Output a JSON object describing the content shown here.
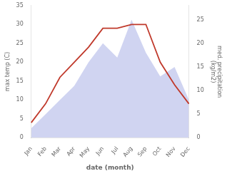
{
  "chart_data": {
    "type": "line",
    "xlabel": "date (month)",
    "ylabel": "max temp (C)",
    "y2label": "med. precipitation\n(kg/m2)",
    "categories": [
      "Jan",
      "Feb",
      "Mar",
      "Apr",
      "May",
      "Jun",
      "Jul",
      "Aug",
      "Sep",
      "Oct",
      "Nov",
      "Dec"
    ],
    "series": [
      {
        "type": "area",
        "axis": "y2",
        "color": "#b0b8e8",
        "values": [
          2,
          5,
          8,
          11,
          16,
          20,
          17,
          25,
          18,
          13,
          15,
          8
        ]
      },
      {
        "type": "line",
        "color": "#c0392b",
        "values": [
          4,
          9,
          16,
          20,
          24,
          29,
          29,
          30,
          30,
          20,
          14,
          9
        ]
      }
    ],
    "ylim": [
      0,
      35
    ],
    "yticks": [
      0,
      5,
      10,
      15,
      20,
      25,
      30,
      35
    ],
    "y2lim": [
      0,
      28
    ],
    "y2ticks": [
      0,
      5,
      10,
      15,
      20,
      25
    ],
    "grid": false
  }
}
